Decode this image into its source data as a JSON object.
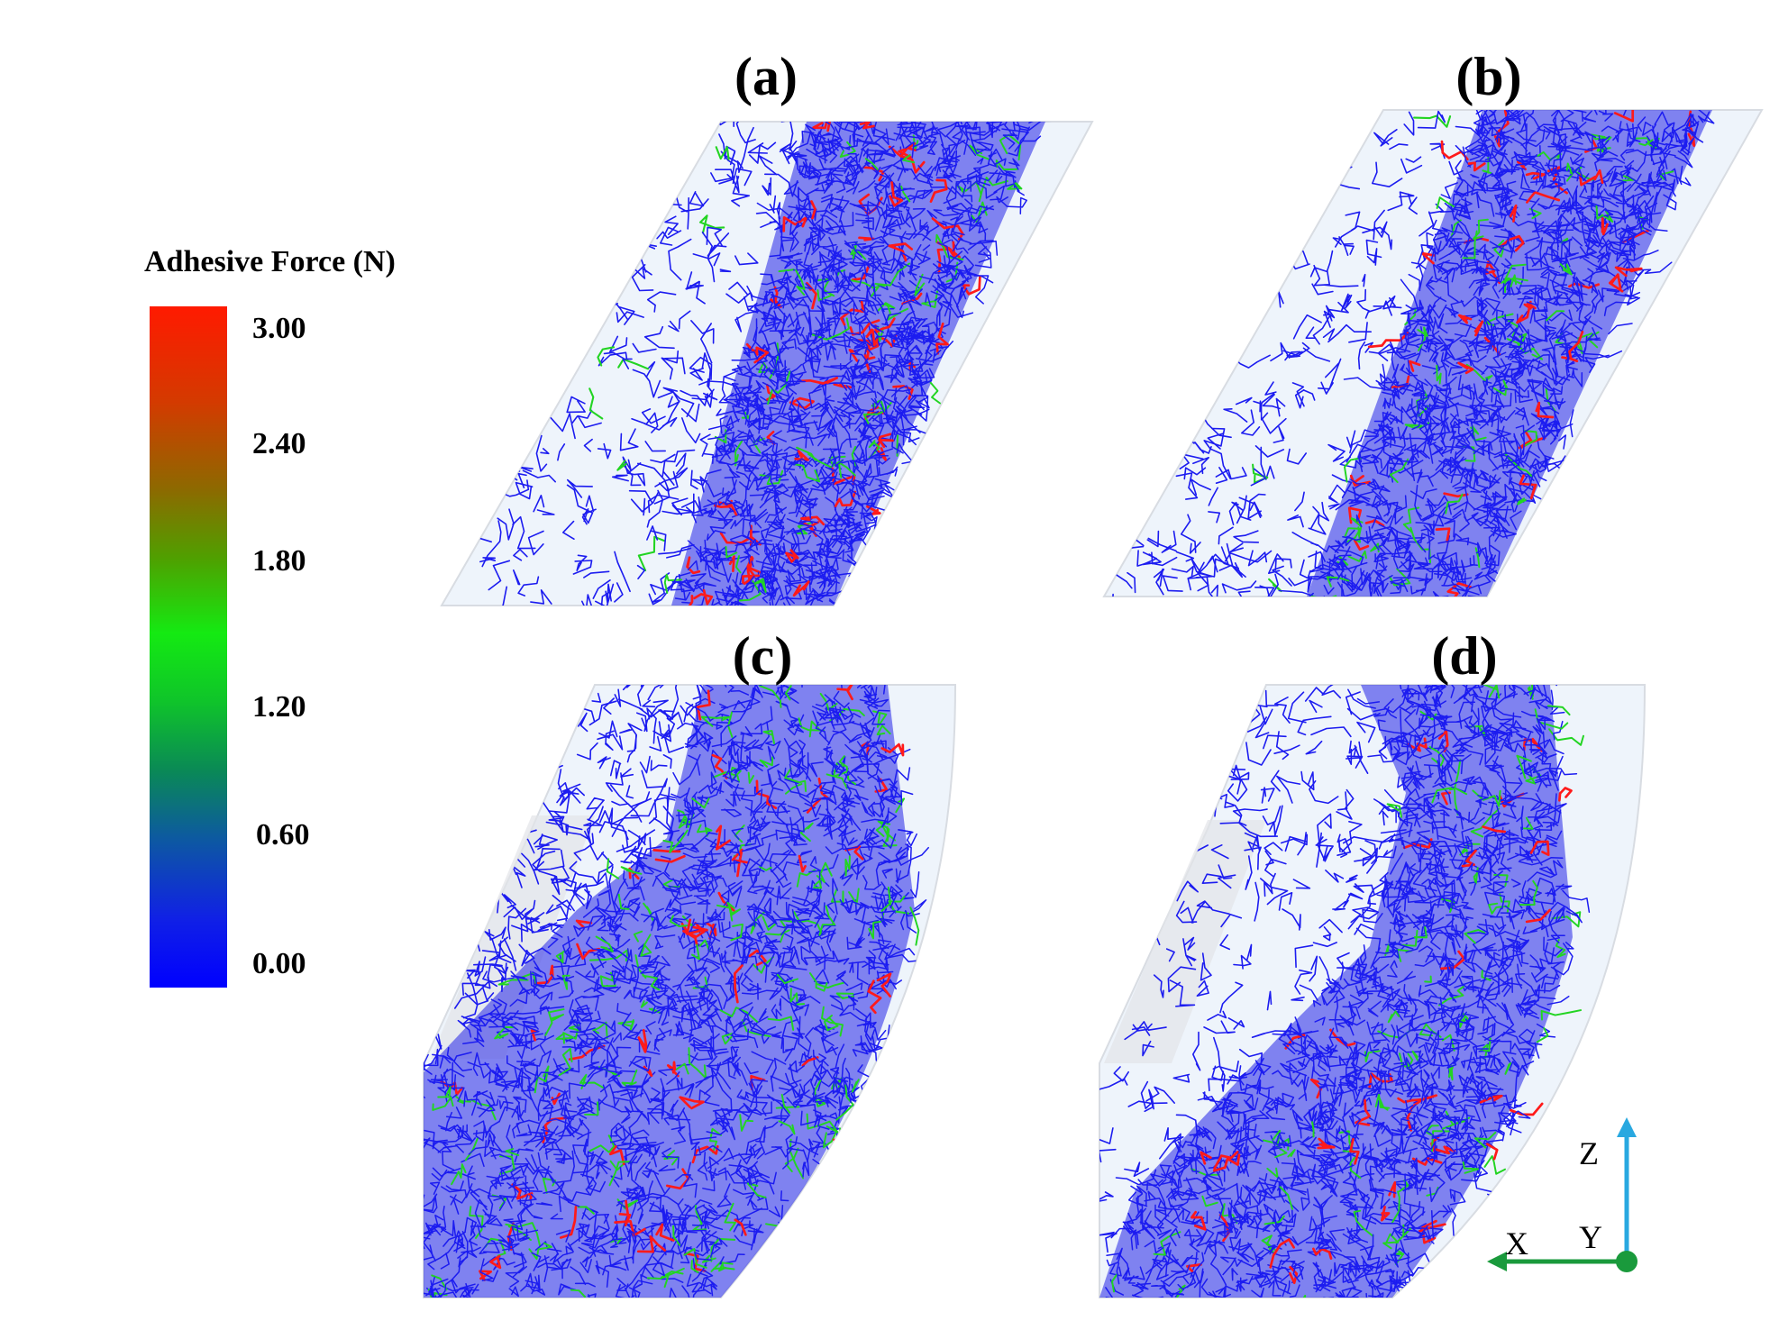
{
  "panels": [
    {
      "id": "a",
      "label": "(a)"
    },
    {
      "id": "b",
      "label": "(b)"
    },
    {
      "id": "c",
      "label": "(c)"
    },
    {
      "id": "d",
      "label": "(d)"
    }
  ],
  "legend": {
    "title": "Adhesive Force (N)",
    "ticks": [
      "3.00",
      "2.40",
      "1.80",
      "1.20",
      "0.60",
      "0.00"
    ],
    "colors": {
      "max": "#ff0000",
      "mid": "#00ff00",
      "min": "#0000ff"
    }
  },
  "axes": {
    "z": "Z",
    "x": "X",
    "y": "Y",
    "z_color": "#29a8e0",
    "x_color": "#1a9a3c",
    "y_color": "#1a9a3c"
  },
  "colors": {
    "network": "#1c1cf0",
    "high": "#ff1a1a",
    "medium": "#22d422",
    "tube": "#eef4fb",
    "tube_edge": "#d8dce2"
  }
}
